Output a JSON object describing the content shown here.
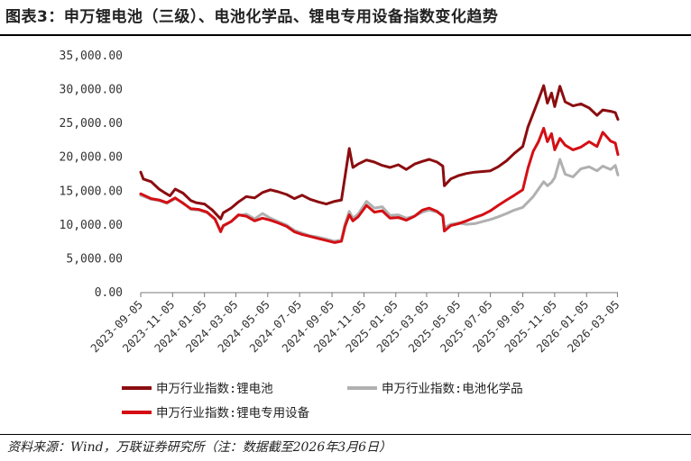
{
  "header": {
    "title": "图表3：申万锂电池（三级）、电池化学品、锂电专用设备指数变化趋势"
  },
  "footer": {
    "source": "资料来源：Wind，万联证券研究所（注：数据截至2026年3月6日）"
  },
  "chart_data": {
    "type": "line",
    "ylim": [
      0,
      35000
    ],
    "y_ticks": [
      "0.00",
      "5,000.00",
      "10,000.00",
      "15,000.00",
      "20,000.00",
      "25,000.00",
      "30,000.00",
      "35,000.00"
    ],
    "y_tick_values": [
      0,
      5000,
      10000,
      15000,
      20000,
      25000,
      30000,
      35000
    ],
    "x_ticks": [
      "2023-09-05",
      "2023-11-05",
      "2024-01-05",
      "2024-03-05",
      "2024-05-05",
      "2024-07-05",
      "2024-09-05",
      "2024-11-05",
      "2025-01-05",
      "2025-03-05",
      "2025-05-05",
      "2025-07-05",
      "2025-09-05",
      "2025-11-05",
      "2026-01-05",
      "2026-03-05"
    ],
    "x_range": [
      "2023-09-05",
      "2026-03-06"
    ],
    "grid": false,
    "legend_position": "bottom",
    "series": [
      {
        "name": "申万行业指数:锂电池",
        "color": "#8b0d10",
        "points": [
          [
            "2023-09-05",
            17800
          ],
          [
            "2023-09-10",
            16800
          ],
          [
            "2023-09-25",
            16400
          ],
          [
            "2023-10-10",
            15300
          ],
          [
            "2023-10-20",
            14800
          ],
          [
            "2023-10-31",
            14300
          ],
          [
            "2023-11-10",
            15300
          ],
          [
            "2023-11-25",
            14700
          ],
          [
            "2023-12-10",
            13600
          ],
          [
            "2023-12-20",
            13300
          ],
          [
            "2024-01-05",
            13100
          ],
          [
            "2024-01-20",
            12200
          ],
          [
            "2024-02-05",
            10900
          ],
          [
            "2024-02-10",
            11800
          ],
          [
            "2024-02-25",
            12500
          ],
          [
            "2024-03-10",
            13400
          ],
          [
            "2024-03-25",
            14200
          ],
          [
            "2024-04-10",
            14000
          ],
          [
            "2024-04-25",
            14800
          ],
          [
            "2024-05-10",
            15200
          ],
          [
            "2024-05-25",
            14900
          ],
          [
            "2024-06-10",
            14500
          ],
          [
            "2024-06-25",
            13900
          ],
          [
            "2024-07-10",
            14400
          ],
          [
            "2024-07-25",
            13800
          ],
          [
            "2024-08-10",
            13400
          ],
          [
            "2024-08-25",
            13100
          ],
          [
            "2024-09-10",
            13500
          ],
          [
            "2024-09-23",
            13700
          ],
          [
            "2024-09-30",
            17200
          ],
          [
            "2024-10-08",
            21300
          ],
          [
            "2024-10-15",
            18500
          ],
          [
            "2024-10-25",
            19000
          ],
          [
            "2024-11-10",
            19600
          ],
          [
            "2024-11-25",
            19300
          ],
          [
            "2024-12-10",
            18800
          ],
          [
            "2024-12-25",
            18500
          ],
          [
            "2025-01-10",
            18900
          ],
          [
            "2025-01-25",
            18200
          ],
          [
            "2025-02-10",
            19000
          ],
          [
            "2025-02-25",
            19400
          ],
          [
            "2025-03-10",
            19700
          ],
          [
            "2025-03-25",
            19300
          ],
          [
            "2025-04-05",
            18700
          ],
          [
            "2025-04-08",
            15800
          ],
          [
            "2025-04-20",
            16800
          ],
          [
            "2025-05-05",
            17300
          ],
          [
            "2025-05-20",
            17600
          ],
          [
            "2025-06-05",
            17800
          ],
          [
            "2025-06-20",
            17900
          ],
          [
            "2025-07-05",
            18000
          ],
          [
            "2025-07-20",
            18600
          ],
          [
            "2025-08-05",
            19500
          ],
          [
            "2025-08-20",
            20600
          ],
          [
            "2025-09-05",
            21600
          ],
          [
            "2025-09-15",
            24500
          ],
          [
            "2025-09-25",
            26500
          ],
          [
            "2025-10-05",
            28500
          ],
          [
            "2025-10-15",
            30600
          ],
          [
            "2025-10-22",
            28000
          ],
          [
            "2025-10-30",
            29500
          ],
          [
            "2025-11-05",
            27500
          ],
          [
            "2025-11-15",
            30500
          ],
          [
            "2025-11-25",
            28200
          ],
          [
            "2025-12-10",
            27600
          ],
          [
            "2025-12-25",
            27900
          ],
          [
            "2026-01-10",
            27300
          ],
          [
            "2026-01-25",
            26200
          ],
          [
            "2026-02-05",
            27000
          ],
          [
            "2026-02-20",
            26800
          ],
          [
            "2026-03-01",
            26600
          ],
          [
            "2026-03-06",
            25600
          ]
        ]
      },
      {
        "name": "申万行业指数:电池化学品",
        "color": "#b0b0b0",
        "points": [
          [
            "2023-09-05",
            14400
          ],
          [
            "2023-09-25",
            13800
          ],
          [
            "2023-10-10",
            13600
          ],
          [
            "2023-10-25",
            13200
          ],
          [
            "2023-11-10",
            13900
          ],
          [
            "2023-11-25",
            13300
          ],
          [
            "2023-12-10",
            12300
          ],
          [
            "2023-12-25",
            12200
          ],
          [
            "2024-01-10",
            11800
          ],
          [
            "2024-01-25",
            10800
          ],
          [
            "2024-02-05",
            9200
          ],
          [
            "2024-02-10",
            9800
          ],
          [
            "2024-02-25",
            10500
          ],
          [
            "2024-03-10",
            11400
          ],
          [
            "2024-03-25",
            11600
          ],
          [
            "2024-04-10",
            10900
          ],
          [
            "2024-04-25",
            11700
          ],
          [
            "2024-05-10",
            11000
          ],
          [
            "2024-05-25",
            10500
          ],
          [
            "2024-06-10",
            10000
          ],
          [
            "2024-06-25",
            9200
          ],
          [
            "2024-07-10",
            8800
          ],
          [
            "2024-07-25",
            8400
          ],
          [
            "2024-08-10",
            8200
          ],
          [
            "2024-08-25",
            7900
          ],
          [
            "2024-09-10",
            7600
          ],
          [
            "2024-09-23",
            7800
          ],
          [
            "2024-09-30",
            10200
          ],
          [
            "2024-10-08",
            12000
          ],
          [
            "2024-10-15",
            11000
          ],
          [
            "2024-10-25",
            11600
          ],
          [
            "2024-11-10",
            13500
          ],
          [
            "2024-11-25",
            12500
          ],
          [
            "2024-12-10",
            12700
          ],
          [
            "2024-12-25",
            11400
          ],
          [
            "2025-01-10",
            11500
          ],
          [
            "2025-01-25",
            11000
          ],
          [
            "2025-02-10",
            11300
          ],
          [
            "2025-02-25",
            11900
          ],
          [
            "2025-03-10",
            12200
          ],
          [
            "2025-03-25",
            11900
          ],
          [
            "2025-04-05",
            11500
          ],
          [
            "2025-04-08",
            9600
          ],
          [
            "2025-04-20",
            10100
          ],
          [
            "2025-05-05",
            10300
          ],
          [
            "2025-05-20",
            10100
          ],
          [
            "2025-06-05",
            10200
          ],
          [
            "2025-06-20",
            10500
          ],
          [
            "2025-07-05",
            10800
          ],
          [
            "2025-07-20",
            11200
          ],
          [
            "2025-08-05",
            11700
          ],
          [
            "2025-08-20",
            12200
          ],
          [
            "2025-09-05",
            12600
          ],
          [
            "2025-09-15",
            13400
          ],
          [
            "2025-09-25",
            14200
          ],
          [
            "2025-10-05",
            15300
          ],
          [
            "2025-10-15",
            16400
          ],
          [
            "2025-10-22",
            15800
          ],
          [
            "2025-10-30",
            16300
          ],
          [
            "2025-11-05",
            17000
          ],
          [
            "2025-11-15",
            19700
          ],
          [
            "2025-11-25",
            17500
          ],
          [
            "2025-12-10",
            17100
          ],
          [
            "2025-12-25",
            18300
          ],
          [
            "2026-01-10",
            18600
          ],
          [
            "2026-01-25",
            18000
          ],
          [
            "2026-02-05",
            18700
          ],
          [
            "2026-02-20",
            18200
          ],
          [
            "2026-03-01",
            18800
          ],
          [
            "2026-03-06",
            17400
          ]
        ]
      },
      {
        "name": "申万行业指数:锂电专用设备",
        "color": "#d40f14",
        "points": [
          [
            "2023-09-05",
            14600
          ],
          [
            "2023-09-25",
            13900
          ],
          [
            "2023-10-10",
            13700
          ],
          [
            "2023-10-25",
            13300
          ],
          [
            "2023-11-10",
            14000
          ],
          [
            "2023-11-25",
            13200
          ],
          [
            "2023-12-10",
            12400
          ],
          [
            "2023-12-25",
            12300
          ],
          [
            "2024-01-10",
            11900
          ],
          [
            "2024-01-25",
            10900
          ],
          [
            "2024-02-05",
            9000
          ],
          [
            "2024-02-10",
            9900
          ],
          [
            "2024-02-25",
            10500
          ],
          [
            "2024-03-10",
            11500
          ],
          [
            "2024-03-25",
            11300
          ],
          [
            "2024-04-10",
            10600
          ],
          [
            "2024-04-25",
            11000
          ],
          [
            "2024-05-10",
            10700
          ],
          [
            "2024-05-25",
            10300
          ],
          [
            "2024-06-10",
            9800
          ],
          [
            "2024-06-25",
            9000
          ],
          [
            "2024-07-10",
            8600
          ],
          [
            "2024-07-25",
            8300
          ],
          [
            "2024-08-10",
            8000
          ],
          [
            "2024-08-25",
            7700
          ],
          [
            "2024-09-10",
            7400
          ],
          [
            "2024-09-23",
            7600
          ],
          [
            "2024-09-30",
            9800
          ],
          [
            "2024-10-08",
            11500
          ],
          [
            "2024-10-15",
            10600
          ],
          [
            "2024-10-25",
            11200
          ],
          [
            "2024-11-10",
            12900
          ],
          [
            "2024-11-25",
            11900
          ],
          [
            "2024-12-10",
            12100
          ],
          [
            "2024-12-25",
            11000
          ],
          [
            "2025-01-10",
            11100
          ],
          [
            "2025-01-25",
            10700
          ],
          [
            "2025-02-10",
            11300
          ],
          [
            "2025-02-25",
            12200
          ],
          [
            "2025-03-10",
            12500
          ],
          [
            "2025-03-25",
            12000
          ],
          [
            "2025-04-05",
            11300
          ],
          [
            "2025-04-08",
            9100
          ],
          [
            "2025-04-20",
            9900
          ],
          [
            "2025-05-05",
            10200
          ],
          [
            "2025-05-20",
            10600
          ],
          [
            "2025-06-05",
            11100
          ],
          [
            "2025-06-20",
            11500
          ],
          [
            "2025-07-05",
            12100
          ],
          [
            "2025-07-20",
            12900
          ],
          [
            "2025-08-05",
            13700
          ],
          [
            "2025-08-20",
            14400
          ],
          [
            "2025-09-05",
            15200
          ],
          [
            "2025-09-15",
            18400
          ],
          [
            "2025-09-25",
            20900
          ],
          [
            "2025-10-05",
            22300
          ],
          [
            "2025-10-15",
            24300
          ],
          [
            "2025-10-22",
            22300
          ],
          [
            "2025-10-30",
            23500
          ],
          [
            "2025-11-05",
            21100
          ],
          [
            "2025-11-15",
            22800
          ],
          [
            "2025-11-25",
            21800
          ],
          [
            "2025-12-10",
            21100
          ],
          [
            "2025-12-25",
            21500
          ],
          [
            "2026-01-10",
            22300
          ],
          [
            "2026-01-25",
            21600
          ],
          [
            "2026-02-05",
            23700
          ],
          [
            "2026-02-20",
            22400
          ],
          [
            "2026-03-01",
            22100
          ],
          [
            "2026-03-06",
            20400
          ]
        ]
      }
    ]
  }
}
